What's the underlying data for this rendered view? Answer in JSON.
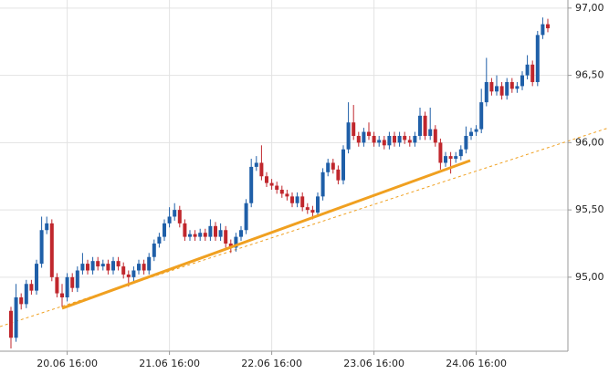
{
  "chart_data": {
    "type": "candlestick",
    "up_color": "#1f5fa8",
    "down_color": "#c0272d",
    "grid": true,
    "ylim": [
      94.45,
      97.06
    ],
    "yticks": [
      {
        "value": 95,
        "label": "95,00"
      },
      {
        "value": 95.5,
        "label": "95,50"
      },
      {
        "value": 96,
        "label": "96,00"
      },
      {
        "value": 96.5,
        "label": "96,50"
      },
      {
        "value": 97,
        "label": "97,00"
      }
    ],
    "xticks": [
      {
        "value": 11,
        "label": "20.06 16:00"
      },
      {
        "value": 31,
        "label": "21.06 16:00"
      },
      {
        "value": 51,
        "label": "22.06 16:00"
      },
      {
        "value": 71,
        "label": "23.06 16:00"
      },
      {
        "value": 91,
        "label": "24.06 16:00"
      }
    ],
    "open": [
      94.75,
      94.55,
      94.85,
      94.8,
      94.95,
      94.9,
      95.1,
      95.35,
      95.4,
      95.0,
      94.88,
      94.85,
      95.0,
      94.92,
      95.05,
      95.1,
      95.05,
      95.12,
      95.08,
      95.1,
      95.05,
      95.12,
      95.08,
      95.02,
      95.0,
      95.05,
      95.1,
      95.05,
      95.15,
      95.25,
      95.3,
      95.4,
      95.45,
      95.5,
      95.4,
      95.3,
      95.32,
      95.3,
      95.33,
      95.3,
      95.38,
      95.3,
      95.35,
      95.25,
      95.22,
      95.3,
      95.35,
      95.55,
      95.82,
      95.85,
      95.75,
      95.7,
      95.68,
      95.65,
      95.62,
      95.6,
      95.55,
      95.6,
      95.52,
      95.5,
      95.48,
      95.6,
      95.78,
      95.85,
      95.8,
      95.72,
      95.95,
      96.15,
      96.05,
      96.0,
      96.08,
      96.05,
      96.0,
      96.02,
      95.98,
      96.05,
      96.0,
      96.05,
      96.02,
      96.0,
      96.05,
      96.2,
      96.05,
      96.1,
      96.0,
      95.85,
      95.9,
      95.88,
      95.9,
      95.95,
      96.05,
      96.08,
      96.1,
      96.3,
      96.45,
      96.38,
      96.42,
      96.35,
      96.45,
      96.4,
      96.42,
      96.5,
      96.58,
      96.45,
      96.8,
      96.88
    ],
    "high": [
      94.78,
      94.95,
      94.88,
      94.98,
      94.98,
      95.13,
      95.45,
      95.45,
      95.43,
      95.03,
      94.95,
      95.03,
      95.03,
      95.08,
      95.18,
      95.13,
      95.15,
      95.15,
      95.13,
      95.13,
      95.15,
      95.15,
      95.11,
      95.05,
      95.08,
      95.13,
      95.13,
      95.18,
      95.28,
      95.33,
      95.43,
      95.52,
      95.55,
      95.53,
      95.43,
      95.35,
      95.35,
      95.36,
      95.36,
      95.43,
      95.41,
      95.4,
      95.38,
      95.28,
      95.33,
      95.38,
      95.58,
      95.88,
      95.9,
      95.98,
      95.78,
      95.73,
      95.71,
      95.68,
      95.65,
      95.63,
      95.63,
      95.63,
      95.55,
      95.53,
      95.63,
      95.81,
      95.88,
      95.88,
      95.83,
      95.98,
      96.3,
      96.28,
      96.08,
      96.11,
      96.15,
      96.08,
      96.05,
      96.05,
      96.08,
      96.08,
      96.08,
      96.08,
      96.05,
      96.08,
      96.26,
      96.23,
      96.26,
      96.13,
      96.03,
      95.93,
      95.93,
      95.93,
      95.98,
      96.12,
      96.11,
      96.13,
      96.4,
      96.63,
      96.48,
      96.5,
      96.45,
      96.48,
      96.48,
      96.45,
      96.53,
      96.65,
      96.61,
      96.83,
      96.93,
      96.92
    ],
    "low": [
      94.47,
      94.52,
      94.76,
      94.77,
      94.87,
      94.87,
      95.07,
      95.32,
      94.97,
      94.85,
      94.78,
      94.82,
      94.89,
      94.89,
      95.02,
      95.02,
      95.02,
      95.05,
      95.05,
      95.02,
      95.02,
      95.05,
      94.99,
      94.93,
      94.97,
      95.02,
      95.02,
      95.02,
      95.12,
      95.22,
      95.27,
      95.37,
      95.42,
      95.37,
      95.27,
      95.27,
      95.27,
      95.27,
      95.27,
      95.27,
      95.27,
      95.27,
      95.22,
      95.18,
      95.19,
      95.27,
      95.32,
      95.52,
      95.79,
      95.72,
      95.67,
      95.65,
      95.62,
      95.59,
      95.57,
      95.52,
      95.52,
      95.49,
      95.47,
      95.43,
      95.45,
      95.57,
      95.75,
      95.77,
      95.69,
      95.69,
      95.92,
      96.02,
      95.97,
      95.97,
      96.02,
      95.97,
      95.97,
      95.95,
      95.95,
      95.97,
      95.97,
      95.99,
      95.97,
      95.97,
      96.02,
      96.02,
      96.02,
      95.97,
      95.8,
      95.82,
      95.77,
      95.85,
      95.87,
      95.92,
      96.02,
      96.05,
      96.07,
      96.27,
      96.35,
      96.35,
      96.32,
      96.32,
      96.37,
      96.37,
      96.39,
      96.47,
      96.42,
      96.42,
      96.77,
      96.82
    ],
    "close": [
      94.55,
      94.85,
      94.8,
      94.95,
      94.9,
      95.1,
      95.35,
      95.4,
      95.0,
      94.88,
      94.85,
      95.0,
      94.92,
      95.05,
      95.1,
      95.05,
      95.12,
      95.08,
      95.1,
      95.05,
      95.12,
      95.08,
      95.02,
      95.0,
      95.05,
      95.1,
      95.05,
      95.15,
      95.25,
      95.3,
      95.4,
      95.45,
      95.5,
      95.4,
      95.3,
      95.32,
      95.3,
      95.33,
      95.3,
      95.38,
      95.3,
      95.35,
      95.25,
      95.22,
      95.3,
      95.35,
      95.55,
      95.82,
      95.85,
      95.75,
      95.7,
      95.68,
      95.65,
      95.62,
      95.6,
      95.55,
      95.6,
      95.52,
      95.5,
      95.48,
      95.6,
      95.78,
      95.85,
      95.8,
      95.72,
      95.95,
      96.15,
      96.05,
      96.0,
      96.08,
      96.05,
      96.0,
      96.02,
      95.98,
      96.05,
      96.0,
      96.05,
      96.02,
      96.0,
      96.05,
      96.2,
      96.05,
      96.1,
      96.0,
      95.85,
      95.9,
      95.88,
      95.9,
      95.95,
      96.05,
      96.08,
      96.1,
      96.3,
      96.45,
      96.38,
      96.42,
      96.35,
      96.45,
      96.4,
      96.42,
      96.5,
      96.58,
      96.45,
      96.8,
      96.88,
      96.85
    ]
  }
}
